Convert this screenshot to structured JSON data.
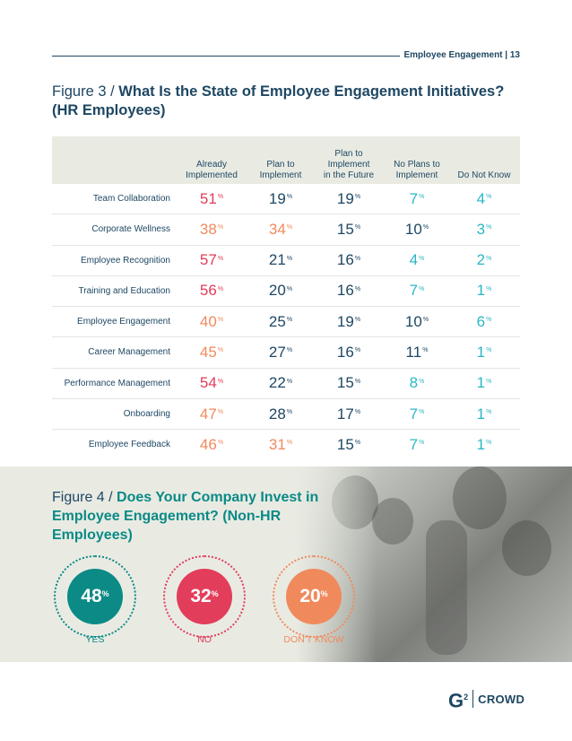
{
  "header": {
    "text": "Employee Engagement | 13"
  },
  "figure3": {
    "prefix": "Figure 3 / ",
    "title": "What Is the State of Employee Engagement Initiatives? (HR Employees)",
    "columns": [
      "Already\nImplemented",
      "Plan to\nImplement",
      "Plan to\nImplement\nin the Future",
      "No Plans to\nImplement",
      "Do Not Know"
    ],
    "rows": [
      {
        "label": "Team Collaboration",
        "values": [
          "51",
          "19",
          "19",
          "7",
          "4"
        ]
      },
      {
        "label": "Corporate Wellness",
        "values": [
          "38",
          "34",
          "15",
          "10",
          "3"
        ]
      },
      {
        "label": "Employee Recognition",
        "values": [
          "57",
          "21",
          "16",
          "4",
          "2"
        ]
      },
      {
        "label": "Training and Education",
        "values": [
          "56",
          "20",
          "16",
          "7",
          "1"
        ]
      },
      {
        "label": "Employee Engagement",
        "values": [
          "40",
          "25",
          "19",
          "10",
          "6"
        ]
      },
      {
        "label": "Career Management",
        "values": [
          "45",
          "27",
          "16",
          "11",
          "1"
        ]
      },
      {
        "label": "Performance Management",
        "values": [
          "54",
          "22",
          "15",
          "8",
          "1"
        ]
      },
      {
        "label": "Onboarding",
        "values": [
          "47",
          "28",
          "17",
          "7",
          "1"
        ]
      },
      {
        "label": "Employee Feedback",
        "values": [
          "46",
          "31",
          "15",
          "7",
          "1"
        ]
      }
    ],
    "percent_symbol": "%",
    "cell_colors": [
      [
        "#e23d5a",
        "#1e4763",
        "#1e4763",
        "#2ab7c6",
        "#2ab7c6"
      ],
      [
        "#f08a5d",
        "#f08a5d",
        "#1e4763",
        "#1e4763",
        "#2ab7c6"
      ],
      [
        "#e23d5a",
        "#1e4763",
        "#1e4763",
        "#2ab7c6",
        "#2ab7c6"
      ],
      [
        "#e23d5a",
        "#1e4763",
        "#1e4763",
        "#2ab7c6",
        "#2ab7c6"
      ],
      [
        "#f08a5d",
        "#1e4763",
        "#1e4763",
        "#1e4763",
        "#2ab7c6"
      ],
      [
        "#f08a5d",
        "#1e4763",
        "#1e4763",
        "#1e4763",
        "#2ab7c6"
      ],
      [
        "#e23d5a",
        "#1e4763",
        "#1e4763",
        "#2ab7c6",
        "#2ab7c6"
      ],
      [
        "#f08a5d",
        "#1e4763",
        "#1e4763",
        "#2ab7c6",
        "#2ab7c6"
      ],
      [
        "#f08a5d",
        "#f08a5d",
        "#1e4763",
        "#2ab7c6",
        "#2ab7c6"
      ]
    ]
  },
  "figure4": {
    "prefix": "Figure 4 / ",
    "title": "Does Your Company Invest in Employee Engagement? (Non-HR Employees)",
    "items": [
      {
        "value": "48",
        "label": "YES",
        "color": "#0b8a86"
      },
      {
        "value": "32",
        "label": "NO",
        "color": "#e23d5a"
      },
      {
        "value": "20",
        "label": "DON'T KNOW",
        "color": "#f08a5d"
      }
    ]
  },
  "logo": {
    "g": "G",
    "sup": "2",
    "text": "CROWD"
  }
}
